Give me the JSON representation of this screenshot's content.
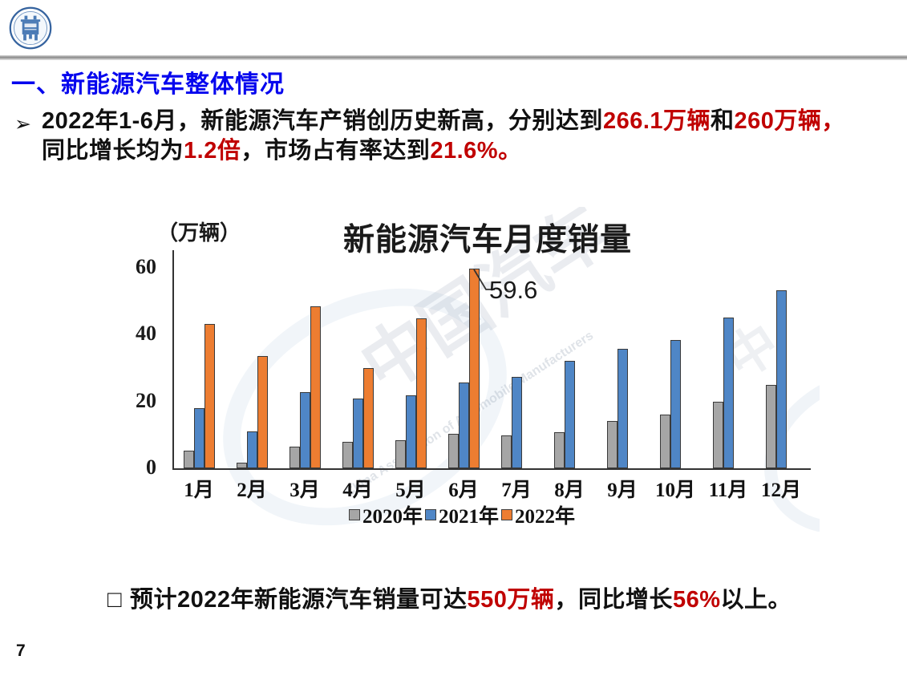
{
  "colors": {
    "title_blue": "#0606EE",
    "red": "#C00000",
    "black": "#111111",
    "bar_gray": "#A6A6A6",
    "bar_blue": "#4F86C6",
    "bar_orange": "#ED7D31",
    "axis": "#333333"
  },
  "slide": {
    "section_title": "一、新能源汽车整体情况",
    "bullet1": {
      "marker": "➢",
      "lines": [
        [
          {
            "t": "2022年1-6月，新能源汽车产销创历史新高，分别达到",
            "c": "black"
          },
          {
            "t": "266.1万辆",
            "c": "red"
          },
          {
            "t": "和",
            "c": "black"
          },
          {
            "t": "260万辆，",
            "c": "red"
          }
        ],
        [
          {
            "t": "同比增长均为",
            "c": "black"
          },
          {
            "t": "1.2倍",
            "c": "red"
          },
          {
            "t": "，市场占有率达到",
            "c": "black"
          },
          {
            "t": "21.6%。",
            "c": "red"
          }
        ]
      ]
    },
    "bullet2": {
      "marker": "□",
      "segments": [
        {
          "t": "预计2022年新能源汽车销量可达",
          "c": "black"
        },
        {
          "t": "550万辆",
          "c": "red"
        },
        {
          "t": "，同比增长",
          "c": "black"
        },
        {
          "t": "56%",
          "c": "red"
        },
        {
          "t": "以上。",
          "c": "black"
        }
      ]
    },
    "page_number": "7"
  },
  "chart_data": {
    "type": "bar",
    "title": "新能源汽车月度销量",
    "unit_label": "（万辆）",
    "categories": [
      "1月",
      "2月",
      "3月",
      "4月",
      "5月",
      "6月",
      "7月",
      "8月",
      "9月",
      "10月",
      "11月",
      "12月"
    ],
    "series": [
      {
        "name": "2020年",
        "color_key": "bar_gray",
        "values": [
          5.3,
          1.6,
          6.5,
          7.8,
          8.4,
          10.4,
          9.8,
          10.8,
          14.2,
          16.0,
          20.0,
          24.8
        ]
      },
      {
        "name": "2021年",
        "color_key": "bar_blue",
        "values": [
          18.0,
          11.0,
          22.8,
          20.9,
          21.9,
          25.7,
          27.2,
          32.2,
          35.8,
          38.4,
          45.0,
          53.2
        ]
      },
      {
        "name": "2022年",
        "color_key": "bar_orange",
        "values": [
          43.1,
          33.5,
          48.5,
          30.0,
          44.7,
          59.6,
          null,
          null,
          null,
          null,
          null,
          null
        ]
      }
    ],
    "annotation": {
      "text": "59.6",
      "series": "2022年",
      "category": "6月"
    },
    "ylim": [
      0,
      60
    ],
    "yticks": [
      0,
      20,
      40,
      60
    ],
    "grid": false,
    "legend_position": "bottom",
    "watermark_text_cn": "中国汽车",
    "watermark_text_en": "China Association of Automobile Manufacturers",
    "watermark_text_cn2": "中"
  }
}
